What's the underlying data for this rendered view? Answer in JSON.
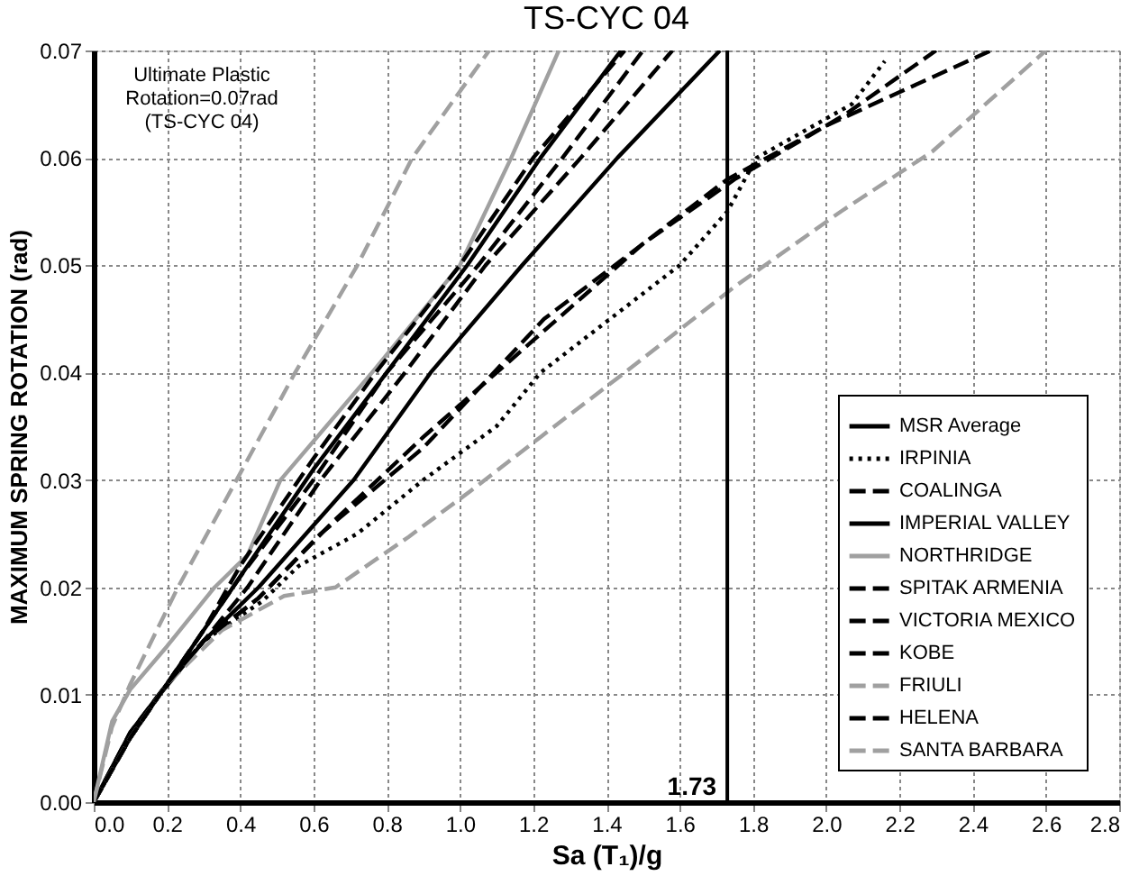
{
  "chart_data": {
    "type": "line",
    "title": "TS-CYC 04",
    "xlabel": "Sa (T₁)/g",
    "ylabel": "MAXIMUM SPRING ROTATION (rad)",
    "xlim": [
      0,
      2.8
    ],
    "xticks": [
      {
        "value": 0,
        "label": "0.0"
      },
      {
        "value": 0.2,
        "label": "0.2"
      },
      {
        "value": 0.4,
        "label": "0.4"
      },
      {
        "value": 0.6,
        "label": "0.6"
      },
      {
        "value": 0.8,
        "label": "0.8"
      },
      {
        "value": 1,
        "label": "1.0"
      },
      {
        "value": 1.2,
        "label": "1.2"
      },
      {
        "value": 1.4,
        "label": "1.4"
      },
      {
        "value": 1.6,
        "label": "1.6"
      },
      {
        "value": 1.8,
        "label": "1.8"
      },
      {
        "value": 2,
        "label": "2.0"
      },
      {
        "value": 2.2,
        "label": "2.2"
      },
      {
        "value": 2.4,
        "label": "2.4"
      },
      {
        "value": 2.6,
        "label": "2.6"
      },
      {
        "value": 2.8,
        "label": "2.8"
      }
    ],
    "ylim": [
      0,
      0.07
    ],
    "yticks": [
      {
        "value": 0,
        "label": "0.00"
      },
      {
        "value": 0.01,
        "label": "0.01"
      },
      {
        "value": 0.02,
        "label": "0.02"
      },
      {
        "value": 0.03,
        "label": "0.03"
      },
      {
        "value": 0.04,
        "label": "0.04"
      },
      {
        "value": 0.05,
        "label": "0.05"
      },
      {
        "value": 0.06,
        "label": "0.06"
      },
      {
        "value": 0.07,
        "label": "0.07"
      }
    ],
    "grid": true,
    "legend": "bottom right",
    "marker": "none",
    "ref_lines": [
      {
        "axis": "x",
        "value": 1.73,
        "label": "1.73",
        "color": "#000000",
        "line_style": "solid"
      }
    ],
    "annotations": [
      "Ultimate Plastic\nRotation=0.07rad\n(TS-CYC 04)"
    ],
    "series": [
      {
        "name": "MSR Average",
        "color": "#000000",
        "line_style": "solid",
        "x": [
          0,
          0.1,
          0.18,
          0.3,
          0.45,
          0.71,
          0.92,
          1.17,
          1.43,
          1.71
        ],
        "values": [
          0,
          0.006,
          0.01,
          0.015,
          0.02,
          0.03,
          0.04,
          0.05,
          0.06,
          0.07
        ]
      },
      {
        "name": "IRPINIA",
        "color": "#000000",
        "line_style": "dotted",
        "x": [
          0,
          0.1,
          0.2,
          0.3,
          0.46,
          0.56,
          0.72,
          0.9,
          1.1,
          1.22,
          1.6,
          1.73,
          1.81,
          2.07,
          2.16
        ],
        "values": [
          0,
          0.006,
          0.011,
          0.015,
          0.0187,
          0.022,
          0.025,
          0.03,
          0.035,
          0.04,
          0.05,
          0.055,
          0.06,
          0.065,
          0.069
        ]
      },
      {
        "name": "COALINGA",
        "color": "#000000",
        "line_style": "dashed",
        "x": [
          0,
          0.1,
          0.2,
          0.3,
          0.42,
          0.62,
          0.85,
          1.07,
          1.33,
          1.58
        ],
        "values": [
          0,
          0.006,
          0.011,
          0.015,
          0.02,
          0.03,
          0.04,
          0.05,
          0.06,
          0.07
        ]
      },
      {
        "name": "IMPERIAL VALLEY",
        "color": "#000000",
        "line_style": "solid",
        "x": [
          0,
          0.1,
          0.2,
          0.3,
          0.4,
          0.6,
          0.8,
          1.02,
          1.22,
          1.44
        ],
        "values": [
          0,
          0.0065,
          0.011,
          0.016,
          0.021,
          0.031,
          0.04,
          0.05,
          0.06,
          0.07
        ]
      },
      {
        "name": "NORTHRIDGE",
        "color": "#a0a0a0",
        "line_style": "solid",
        "x": [
          0,
          0.05,
          0.1,
          0.2,
          0.33,
          0.42,
          0.51,
          0.76,
          1.0,
          1.14,
          1.27
        ],
        "values": [
          0,
          0.0075,
          0.0105,
          0.0145,
          0.02,
          0.023,
          0.03,
          0.04,
          0.05,
          0.06,
          0.07
        ]
      },
      {
        "name": "SPITAK ARMENIA",
        "color": "#000000",
        "line_style": "dashed",
        "x": [
          0,
          0.1,
          0.2,
          0.3,
          0.4,
          0.6,
          0.77,
          1.0,
          1.2,
          1.45
        ],
        "values": [
          0,
          0.0065,
          0.011,
          0.016,
          0.022,
          0.032,
          0.04,
          0.05,
          0.06,
          0.07
        ]
      },
      {
        "name": "VICTORIA MEXICO",
        "color": "#000000",
        "line_style": "dashed",
        "x": [
          0,
          0.1,
          0.2,
          0.3,
          0.45,
          0.62,
          0.9,
          1.23,
          1.5,
          1.73,
          2.0,
          2.45
        ],
        "values": [
          0,
          0.006,
          0.011,
          0.015,
          0.019,
          0.025,
          0.033,
          0.045,
          0.052,
          0.058,
          0.063,
          0.07
        ]
      },
      {
        "name": "KOBE",
        "color": "#000000",
        "line_style": "dashed",
        "x": [
          0,
          0.1,
          0.2,
          0.3,
          0.4,
          0.6,
          0.8,
          1.05,
          1.28,
          1.5
        ],
        "values": [
          0,
          0.006,
          0.011,
          0.016,
          0.021,
          0.03,
          0.04,
          0.05,
          0.06,
          0.07
        ]
      },
      {
        "name": "FRIULI",
        "color": "#a0a0a0",
        "line_style": "dashed",
        "x": [
          0,
          0.1,
          0.2,
          0.35,
          0.52,
          0.66,
          0.86,
          1.03,
          1.22,
          1.45,
          1.75,
          2.04,
          2.29,
          2.6
        ],
        "values": [
          0,
          0.006,
          0.011,
          0.016,
          0.0192,
          0.02,
          0.0247,
          0.029,
          0.034,
          0.04,
          0.048,
          0.055,
          0.0606,
          0.07
        ]
      },
      {
        "name": "HELENA",
        "color": "#000000",
        "line_style": "dashed",
        "x": [
          0,
          0.1,
          0.2,
          0.3,
          0.45,
          0.65,
          0.9,
          1.2,
          1.5,
          1.75,
          2.05,
          2.3
        ],
        "values": [
          0,
          0.006,
          0.011,
          0.015,
          0.019,
          0.026,
          0.034,
          0.043,
          0.052,
          0.058,
          0.064,
          0.07
        ]
      },
      {
        "name": "SANTA BARBARA",
        "color": "#a0a0a0",
        "line_style": "dashed",
        "x": [
          0,
          0.05,
          0.1,
          0.23,
          0.39,
          0.55,
          0.72,
          0.87,
          1.08
        ],
        "values": [
          0,
          0.007,
          0.011,
          0.02,
          0.03,
          0.04,
          0.05,
          0.06,
          0.07
        ]
      }
    ]
  }
}
